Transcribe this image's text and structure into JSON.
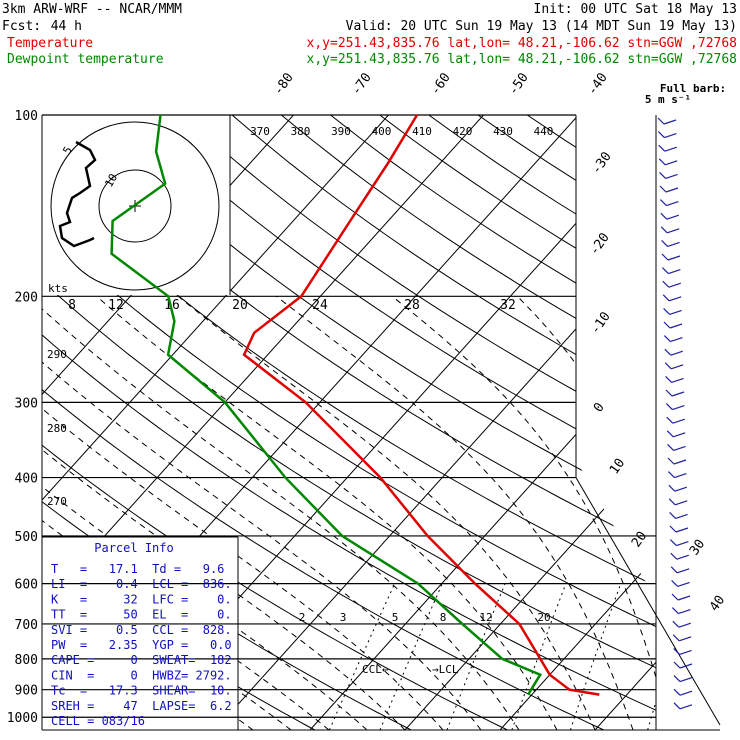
{
  "header": {
    "model": "3km ARW-WRF -- NCAR/MMM",
    "init": "Init: 00 UTC Sat 18 May 13",
    "fcst_label": "Fcst:",
    "fcst_hours": "44 h",
    "valid": "Valid: 20 UTC Sun 19 May 13 (14 MDT Sun 19 May 13)",
    "temperature_label": "Temperature",
    "dewpoint_label": "Dewpoint temperature",
    "location": "x,y=251.43,835.76   lat,lon= 48.21,-106.62   stn=GGW ,72768"
  },
  "barb_legend": {
    "line1": "Full barb:",
    "line2": "5 m s⁻¹"
  },
  "colors": {
    "temperature": "#e00000",
    "dewpoint": "#008800",
    "parcel_info": "#1010c0",
    "barbs": "#2020a0"
  },
  "chart_data": {
    "type": "line",
    "diagram": "skew-T log-p",
    "pressure_levels": [
      100,
      200,
      300,
      400,
      500,
      600,
      700,
      800,
      900,
      1000
    ],
    "skewed_isotherm_labels": [
      "-80",
      "-70",
      "-60",
      "-50",
      "-40",
      "-30",
      "-20",
      "-10",
      "0",
      "10",
      "20",
      "30",
      "40"
    ],
    "theta_e_labels": [
      "370",
      "380",
      "390",
      "400",
      "410",
      "420",
      "430",
      "440"
    ],
    "theta_labels": [
      "290",
      "280",
      "270"
    ],
    "mixing_ratio_labels": [
      "2",
      "3",
      "5",
      "8",
      "12",
      "20"
    ],
    "ccl_label": "CCL",
    "lcl_label": "LCL",
    "hodograph": {
      "units_label": "kts",
      "speed_ticks": [
        "8",
        "12",
        "16",
        "20",
        "24",
        "28",
        "32"
      ],
      "ring_labels": [
        "5",
        "10"
      ]
    },
    "series": [
      {
        "name": "Temperature",
        "points": [
          [
            917,
            17.1
          ],
          [
            900,
            13.5
          ],
          [
            850,
            10.0
          ],
          [
            800,
            7.5
          ],
          [
            700,
            2.0
          ],
          [
            600,
            -6.5
          ],
          [
            500,
            -16.0
          ],
          [
            400,
            -26.5
          ],
          [
            300,
            -41.5
          ],
          [
            250,
            -52.5
          ],
          [
            230,
            -53.5
          ],
          [
            200,
            -52.0
          ],
          [
            150,
            -54.0
          ],
          [
            120,
            -55.5
          ],
          [
            100,
            -57.0
          ]
        ]
      },
      {
        "name": "Dewpoint temperature",
        "points": [
          [
            917,
            9.6
          ],
          [
            850,
            9.0
          ],
          [
            800,
            3.5
          ],
          [
            700,
            -4.0
          ],
          [
            600,
            -12.5
          ],
          [
            500,
            -25.0
          ],
          [
            400,
            -36.5
          ],
          [
            300,
            -50.0
          ],
          [
            250,
            -60.5
          ],
          [
            220,
            -63.0
          ],
          [
            200,
            -66.0
          ],
          [
            170,
            -76.0
          ],
          [
            150,
            -79.0
          ],
          [
            130,
            -77.0
          ],
          [
            115,
            -81.0
          ],
          [
            100,
            -84.0
          ]
        ]
      }
    ]
  },
  "parcel_info": {
    "title": "Parcel Info",
    "rows": [
      "T   =   17.1  Td =   9.6",
      "LI  =    0.4  LCL =  836.",
      "K   =     32  LFC =    0.",
      "TT  =     50  EL  =    0.",
      "SVI =    0.5  CCL =  828.",
      "PW  =   2.35  YGP =   0.0",
      "CAPE =     0  SWEAT=  182",
      "CIN  =     0  HWBZ= 2792.",
      "Tc  =   17.3  SHEAR=  10.",
      "SREH =    47  LAPSE=  6.2",
      "CELL = 083/16"
    ]
  }
}
